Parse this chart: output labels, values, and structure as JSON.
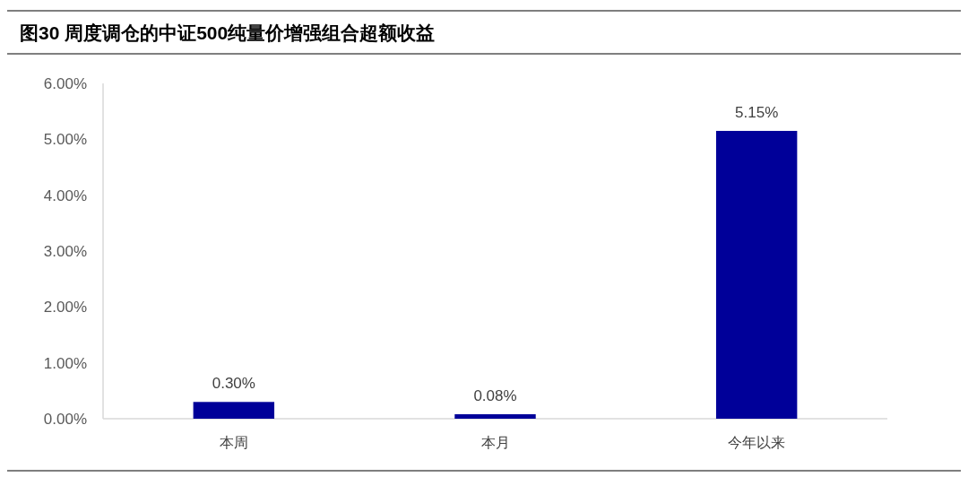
{
  "chart_data": {
    "type": "bar",
    "title": "图30 周度调仓的中证500纯量价增强组合超额收益",
    "categories": [
      "本周",
      "本月",
      "今年以来"
    ],
    "values": [
      0.3,
      0.08,
      5.15
    ],
    "value_labels": [
      "0.30%",
      "0.08%",
      "5.15%"
    ],
    "color": "#000099",
    "ylim": [
      0,
      6
    ],
    "yticks": [
      {
        "value": 0,
        "label": "0.00%"
      },
      {
        "value": 1,
        "label": "1.00%"
      },
      {
        "value": 2,
        "label": "2.00%"
      },
      {
        "value": 3,
        "label": "3.00%"
      },
      {
        "value": 4,
        "label": "4.00%"
      },
      {
        "value": 5,
        "label": "5.00%"
      },
      {
        "value": 6,
        "label": "6.00%"
      }
    ],
    "grid": false
  }
}
